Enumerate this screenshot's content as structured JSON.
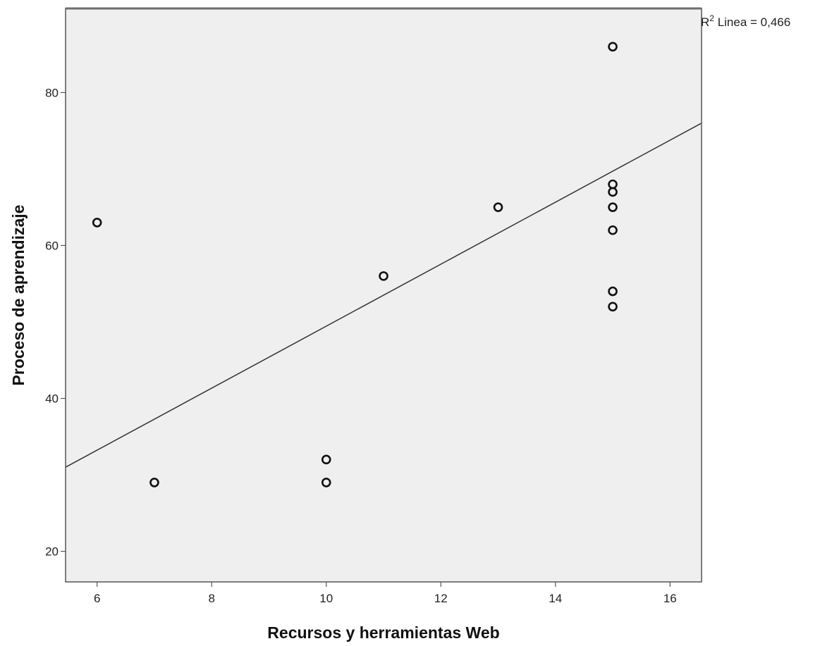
{
  "chart_data": {
    "type": "scatter",
    "xlabel": "Recursos y herramientas Web",
    "ylabel": "Proceso de aprendizaje",
    "xlim": [
      5.45,
      16.55
    ],
    "ylim": [
      16,
      91
    ],
    "x_ticks": [
      6,
      8,
      10,
      12,
      14,
      16
    ],
    "y_ticks": [
      20,
      40,
      60,
      80
    ],
    "x_tick_labels": [
      "6",
      "8",
      "10",
      "12",
      "14",
      "16"
    ],
    "y_tick_labels": [
      "20",
      "40",
      "60",
      "80"
    ],
    "grid": false,
    "points": [
      {
        "x": 6,
        "y": 63
      },
      {
        "x": 7,
        "y": 29
      },
      {
        "x": 10,
        "y": 32
      },
      {
        "x": 10,
        "y": 29
      },
      {
        "x": 11,
        "y": 56
      },
      {
        "x": 13,
        "y": 65
      },
      {
        "x": 15,
        "y": 86
      },
      {
        "x": 15,
        "y": 68
      },
      {
        "x": 15,
        "y": 67
      },
      {
        "x": 15,
        "y": 65
      },
      {
        "x": 15,
        "y": 62
      },
      {
        "x": 15,
        "y": 54
      },
      {
        "x": 15,
        "y": 52
      }
    ],
    "fit_line": {
      "x": [
        5.45,
        16.55
      ],
      "y": [
        31,
        76
      ]
    },
    "r2": {
      "prefix": "R",
      "sup": "2",
      "rest": " Linea = 0,466"
    },
    "colors": {
      "plot_background": "#efefef",
      "marker": "#111111",
      "fit_line": "#333333",
      "frame": "#555555",
      "top_frame": "#6e6e6e"
    }
  }
}
